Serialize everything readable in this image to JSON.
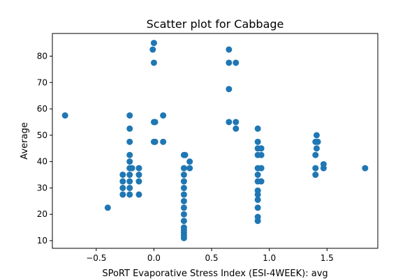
{
  "chart_data": {
    "type": "scatter",
    "title": "Scatter plot for Cabbage",
    "xlabel": "SPoRT Evaporative Stress Index (ESI-4WEEK): avg",
    "ylabel": "Average",
    "xlim": [
      -0.88,
      1.94
    ],
    "ylim": [
      7.1,
      88.6
    ],
    "xticks": [
      -0.5,
      0.0,
      0.5,
      1.0,
      1.5
    ],
    "xtick_labels": [
      "−0.5",
      "0.0",
      "0.5",
      "1.0",
      "1.5"
    ],
    "yticks": [
      10,
      20,
      30,
      40,
      50,
      60,
      70,
      80
    ],
    "ytick_labels": [
      "10",
      "20",
      "30",
      "40",
      "50",
      "60",
      "70",
      "80"
    ],
    "grid": false,
    "series": [
      {
        "color": "#1f77b4",
        "points": [
          [
            -0.77,
            57.5
          ],
          [
            -0.4,
            22.5
          ],
          [
            -0.27,
            35
          ],
          [
            -0.27,
            32.5
          ],
          [
            -0.27,
            30
          ],
          [
            -0.27,
            27.5
          ],
          [
            -0.21,
            57.5
          ],
          [
            -0.21,
            52.5
          ],
          [
            -0.21,
            47.5
          ],
          [
            -0.21,
            42.5
          ],
          [
            -0.21,
            40
          ],
          [
            -0.21,
            37.5
          ],
          [
            -0.21,
            35
          ],
          [
            -0.21,
            32.5
          ],
          [
            -0.21,
            30
          ],
          [
            -0.21,
            27.5
          ],
          [
            -0.19,
            37.5
          ],
          [
            -0.13,
            37.5
          ],
          [
            -0.13,
            35
          ],
          [
            -0.13,
            32.5
          ],
          [
            -0.13,
            27.5
          ],
          [
            -0.01,
            82.5
          ],
          [
            0.0,
            85
          ],
          [
            0.0,
            77.5
          ],
          [
            0.0,
            55
          ],
          [
            0.01,
            55
          ],
          [
            0.0,
            47.5
          ],
          [
            0.01,
            47.5
          ],
          [
            0.08,
            57.5
          ],
          [
            0.08,
            47.5
          ],
          [
            0.26,
            42.5
          ],
          [
            0.27,
            42.5
          ],
          [
            0.26,
            37.5
          ],
          [
            0.26,
            35
          ],
          [
            0.26,
            32.5
          ],
          [
            0.26,
            30
          ],
          [
            0.26,
            27.5
          ],
          [
            0.26,
            25
          ],
          [
            0.26,
            22.5
          ],
          [
            0.26,
            20
          ],
          [
            0.26,
            17.5
          ],
          [
            0.26,
            15
          ],
          [
            0.26,
            14
          ],
          [
            0.26,
            13
          ],
          [
            0.26,
            12
          ],
          [
            0.26,
            11
          ],
          [
            0.31,
            40
          ],
          [
            0.31,
            37.5
          ],
          [
            0.65,
            82.5
          ],
          [
            0.65,
            77.5
          ],
          [
            0.65,
            67.5
          ],
          [
            0.65,
            55
          ],
          [
            0.71,
            77.5
          ],
          [
            0.71,
            55
          ],
          [
            0.71,
            52.5
          ],
          [
            0.9,
            52.5
          ],
          [
            0.9,
            47.5
          ],
          [
            0.9,
            45
          ],
          [
            0.9,
            42.5
          ],
          [
            0.9,
            37.5
          ],
          [
            0.9,
            35
          ],
          [
            0.9,
            32.5
          ],
          [
            0.9,
            29
          ],
          [
            0.9,
            27.5
          ],
          [
            0.9,
            25.5
          ],
          [
            0.9,
            22.5
          ],
          [
            0.9,
            19
          ],
          [
            0.9,
            17.5
          ],
          [
            0.93,
            45
          ],
          [
            0.93,
            42.5
          ],
          [
            0.93,
            37.5
          ],
          [
            0.93,
            32.5
          ],
          [
            1.4,
            47.5
          ],
          [
            1.4,
            42.5
          ],
          [
            1.4,
            37.5
          ],
          [
            1.4,
            35
          ],
          [
            1.41,
            50
          ],
          [
            1.42,
            47.5
          ],
          [
            1.41,
            45
          ],
          [
            1.47,
            39
          ],
          [
            1.47,
            37.5
          ],
          [
            1.83,
            37.5
          ]
        ]
      }
    ]
  }
}
